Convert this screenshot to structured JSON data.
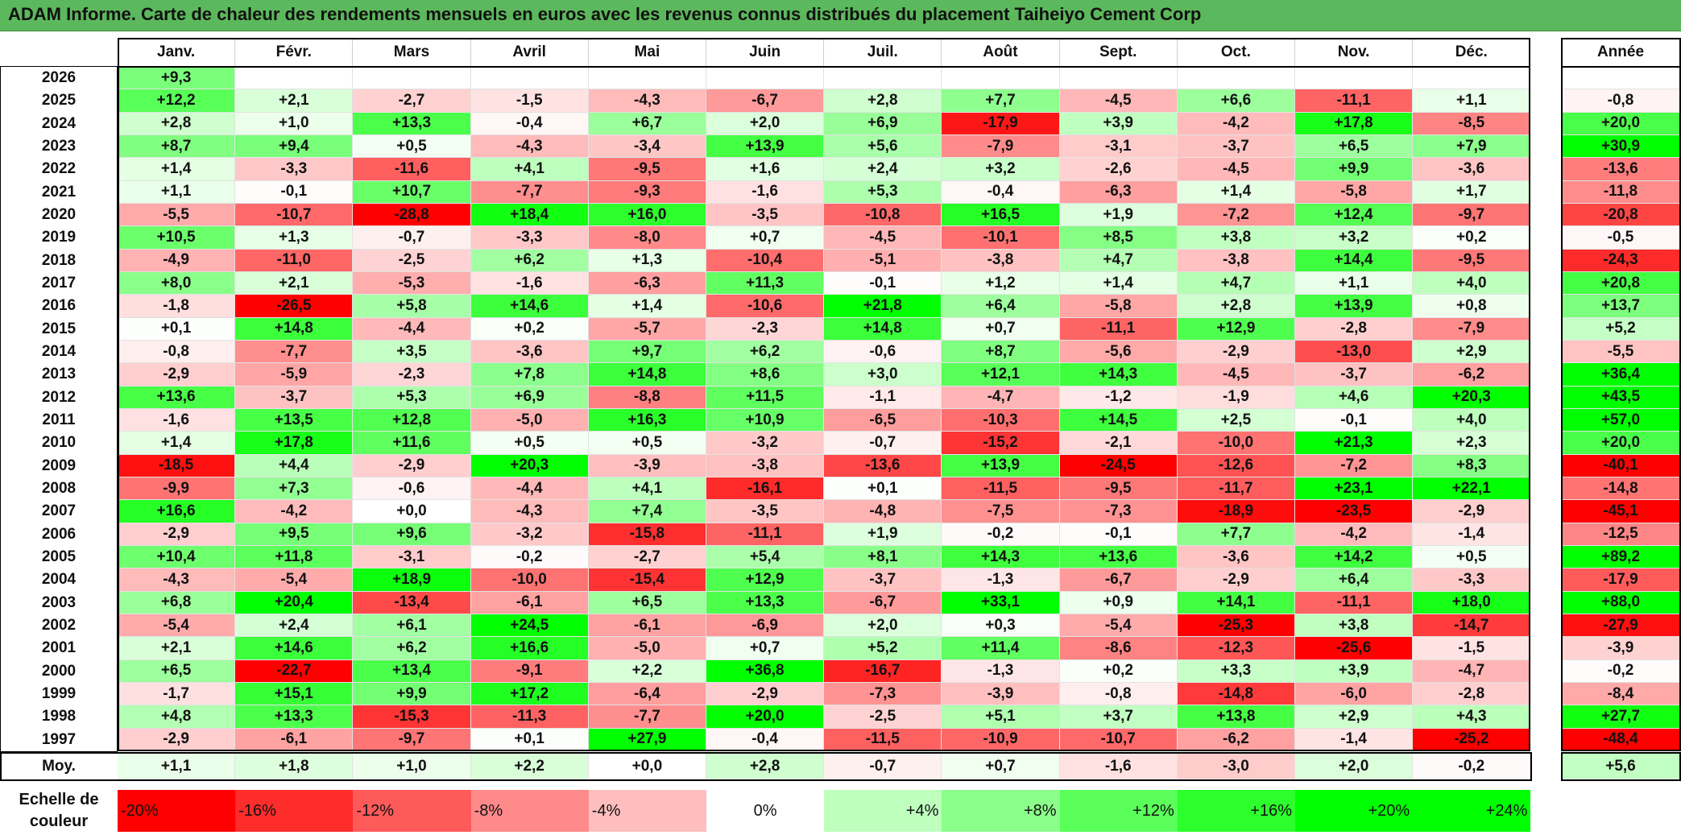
{
  "title": "ADAM Informe. Carte de chaleur des rendements mensuels en euros avec les revenus connus distribués du placement Taiheiyo Cement Corp",
  "colors": {
    "title_bg": "#5cb85c",
    "strong_red": "#ff0000",
    "strong_green": "#00ff00",
    "neutral": "#ffffff"
  },
  "chart_data": {
    "type": "heatmap",
    "title": "ADAM Informe. Carte de chaleur des rendements mensuels en euros avec les revenus connus distribués du placement Taiheiyo Cement Corp",
    "months": [
      "Janv.",
      "Févr.",
      "Mars",
      "Avril",
      "Mai",
      "Juin",
      "Juil.",
      "Août",
      "Sept.",
      "Oct.",
      "Nov.",
      "Déc."
    ],
    "year_header": "Année",
    "color_scale_range": [
      -20,
      24
    ],
    "rows": [
      {
        "year": "2026",
        "values": [
          "+9,3",
          "",
          "",
          "",
          "",
          "",
          "",
          "",
          "",
          "",
          "",
          ""
        ],
        "annual": ""
      },
      {
        "year": "2025",
        "values": [
          "+12,2",
          "+2,1",
          "-2,7",
          "-1,5",
          "-4,3",
          "-6,7",
          "+2,8",
          "+7,7",
          "-4,5",
          "+6,6",
          "-11,1",
          "+1,1"
        ],
        "annual": "-0,8"
      },
      {
        "year": "2024",
        "values": [
          "+2,8",
          "+1,0",
          "+13,3",
          "-0,4",
          "+6,7",
          "+2,0",
          "+6,9",
          "-17,9",
          "+3,9",
          "-4,2",
          "+17,8",
          "-8,5"
        ],
        "annual": "+20,0"
      },
      {
        "year": "2023",
        "values": [
          "+8,7",
          "+9,4",
          "+0,5",
          "-4,3",
          "-3,4",
          "+13,9",
          "+5,6",
          "-7,9",
          "-3,1",
          "-3,7",
          "+6,5",
          "+7,9"
        ],
        "annual": "+30,9"
      },
      {
        "year": "2022",
        "values": [
          "+1,4",
          "-3,3",
          "-11,6",
          "+4,1",
          "-9,5",
          "+1,6",
          "+2,4",
          "+3,2",
          "-2,6",
          "-4,5",
          "+9,9",
          "-3,6"
        ],
        "annual": "-13,6"
      },
      {
        "year": "2021",
        "values": [
          "+1,1",
          "-0,1",
          "+10,7",
          "-7,7",
          "-9,3",
          "-1,6",
          "+5,3",
          "-0,4",
          "-6,3",
          "+1,4",
          "-5,8",
          "+1,7"
        ],
        "annual": "-11,8"
      },
      {
        "year": "2020",
        "values": [
          "-5,5",
          "-10,7",
          "-28,8",
          "+18,4",
          "+16,0",
          "-3,5",
          "-10,8",
          "+16,5",
          "+1,9",
          "-7,2",
          "+12,4",
          "-9,7"
        ],
        "annual": "-20,8"
      },
      {
        "year": "2019",
        "values": [
          "+10,5",
          "+1,3",
          "-0,7",
          "-3,3",
          "-8,0",
          "+0,7",
          "-4,5",
          "-10,1",
          "+8,5",
          "+3,8",
          "+3,2",
          "+0,2"
        ],
        "annual": "-0,5"
      },
      {
        "year": "2018",
        "values": [
          "-4,9",
          "-11,0",
          "-2,5",
          "+6,2",
          "+1,3",
          "-10,4",
          "-5,1",
          "-3,8",
          "+4,7",
          "-3,8",
          "+14,4",
          "-9,5"
        ],
        "annual": "-24,3"
      },
      {
        "year": "2017",
        "values": [
          "+8,0",
          "+2,1",
          "-5,3",
          "-1,6",
          "-6,3",
          "+11,3",
          "-0,1",
          "+1,2",
          "+1,4",
          "+4,7",
          "+1,1",
          "+4,0"
        ],
        "annual": "+20,8"
      },
      {
        "year": "2016",
        "values": [
          "-1,8",
          "-26,5",
          "+5,8",
          "+14,6",
          "+1,4",
          "-10,6",
          "+21,8",
          "+6,4",
          "-5,8",
          "+2,8",
          "+13,9",
          "+0,8"
        ],
        "annual": "+13,7"
      },
      {
        "year": "2015",
        "values": [
          "+0,1",
          "+14,8",
          "-4,4",
          "+0,2",
          "-5,7",
          "-2,3",
          "+14,8",
          "+0,7",
          "-11,1",
          "+12,9",
          "-2,8",
          "-7,9"
        ],
        "annual": "+5,2"
      },
      {
        "year": "2014",
        "values": [
          "-0,8",
          "-7,7",
          "+3,5",
          "-3,6",
          "+9,7",
          "+6,2",
          "-0,6",
          "+8,7",
          "-5,6",
          "-2,9",
          "-13,0",
          "+2,9"
        ],
        "annual": "-5,5"
      },
      {
        "year": "2013",
        "values": [
          "-2,9",
          "-5,9",
          "-2,3",
          "+7,8",
          "+14,8",
          "+8,6",
          "+3,0",
          "+12,1",
          "+14,3",
          "-4,5",
          "-3,7",
          "-6,2"
        ],
        "annual": "+36,4"
      },
      {
        "year": "2012",
        "values": [
          "+13,6",
          "-3,7",
          "+5,3",
          "+6,9",
          "-8,8",
          "+11,5",
          "-1,1",
          "-4,7",
          "-1,2",
          "-1,9",
          "+4,6",
          "+20,3"
        ],
        "annual": "+43,5"
      },
      {
        "year": "2011",
        "values": [
          "-1,6",
          "+13,5",
          "+12,8",
          "-5,0",
          "+16,3",
          "+10,9",
          "-6,5",
          "-10,3",
          "+14,5",
          "+2,5",
          "-0,1",
          "+4,0"
        ],
        "annual": "+57,0"
      },
      {
        "year": "2010",
        "values": [
          "+1,4",
          "+17,8",
          "+11,6",
          "+0,5",
          "+0,5",
          "-3,2",
          "-0,7",
          "-15,2",
          "-2,1",
          "-10,0",
          "+21,3",
          "+2,3"
        ],
        "annual": "+20,0"
      },
      {
        "year": "2009",
        "values": [
          "-18,5",
          "+4,4",
          "-2,9",
          "+20,3",
          "-3,9",
          "-3,8",
          "-13,6",
          "+13,9",
          "-24,5",
          "-12,6",
          "-7,2",
          "+8,3"
        ],
        "annual": "-40,1"
      },
      {
        "year": "2008",
        "values": [
          "-9,9",
          "+7,3",
          "-0,6",
          "-4,4",
          "+4,1",
          "-16,1",
          "+0,1",
          "-11,5",
          "-9,5",
          "-11,7",
          "+23,1",
          "+22,1"
        ],
        "annual": "-14,8"
      },
      {
        "year": "2007",
        "values": [
          "+16,6",
          "-4,2",
          "+0,0",
          "-4,3",
          "+7,4",
          "-3,5",
          "-4,8",
          "-7,5",
          "-7,3",
          "-18,9",
          "-23,5",
          "-2,9"
        ],
        "annual": "-45,1"
      },
      {
        "year": "2006",
        "values": [
          "-2,9",
          "+9,5",
          "+9,6",
          "-3,2",
          "-15,8",
          "-11,1",
          "+1,9",
          "-0,2",
          "-0,1",
          "+7,7",
          "-4,2",
          "-1,4"
        ],
        "annual": "-12,5"
      },
      {
        "year": "2005",
        "values": [
          "+10,4",
          "+11,8",
          "-3,1",
          "-0,2",
          "-2,7",
          "+5,4",
          "+8,1",
          "+14,3",
          "+13,6",
          "-3,6",
          "+14,2",
          "+0,5"
        ],
        "annual": "+89,2"
      },
      {
        "year": "2004",
        "values": [
          "-4,3",
          "-5,4",
          "+18,9",
          "-10,0",
          "-15,4",
          "+12,9",
          "-3,7",
          "-1,3",
          "-6,7",
          "-2,9",
          "+6,4",
          "-3,3"
        ],
        "annual": "-17,9"
      },
      {
        "year": "2003",
        "values": [
          "+6,8",
          "+20,4",
          "-13,4",
          "-6,1",
          "+6,5",
          "+13,3",
          "-6,7",
          "+33,1",
          "+0,9",
          "+14,1",
          "-11,1",
          "+18,0"
        ],
        "annual": "+88,0"
      },
      {
        "year": "2002",
        "values": [
          "-5,4",
          "+2,4",
          "+6,1",
          "+24,5",
          "-6,1",
          "-6,9",
          "+2,0",
          "+0,3",
          "-5,4",
          "-25,3",
          "+3,8",
          "-14,7"
        ],
        "annual": "-27,9"
      },
      {
        "year": "2001",
        "values": [
          "+2,1",
          "+14,6",
          "+6,2",
          "+16,6",
          "-5,0",
          "+0,7",
          "+5,2",
          "+11,4",
          "-8,6",
          "-12,3",
          "-25,6",
          "-1,5"
        ],
        "annual": "-3,9"
      },
      {
        "year": "2000",
        "values": [
          "+6,5",
          "-22,7",
          "+13,4",
          "-9,1",
          "+2,2",
          "+36,8",
          "-16,7",
          "-1,3",
          "+0,2",
          "+3,3",
          "+3,9",
          "-4,7"
        ],
        "annual": "-0,2"
      },
      {
        "year": "1999",
        "values": [
          "-1,7",
          "+15,1",
          "+9,9",
          "+17,2",
          "-6,4",
          "-2,9",
          "-7,3",
          "-3,9",
          "-0,8",
          "-14,8",
          "-6,0",
          "-2,8"
        ],
        "annual": "-8,4"
      },
      {
        "year": "1998",
        "values": [
          "+4,8",
          "+13,3",
          "-15,3",
          "-11,3",
          "-7,7",
          "+20,0",
          "-2,5",
          "+5,1",
          "+3,7",
          "+13,8",
          "+2,9",
          "+4,3"
        ],
        "annual": "+27,7"
      },
      {
        "year": "1997",
        "values": [
          "-2,9",
          "-6,1",
          "-9,7",
          "+0,1",
          "+27,9",
          "-0,4",
          "-11,5",
          "-10,9",
          "-10,7",
          "-6,2",
          "-1,4",
          "-25,2"
        ],
        "annual": "-48,4"
      }
    ],
    "average": {
      "label": "Moy.",
      "values": [
        "+1,1",
        "+1,8",
        "+1,0",
        "+2,2",
        "+0,0",
        "+2,8",
        "-0,7",
        "+0,7",
        "-1,6",
        "-3,0",
        "+2,0",
        "-0,2"
      ],
      "annual": "+5,6"
    },
    "legend": {
      "label": "Echelle de couleur",
      "items": [
        "-20%",
        "-16%",
        "-12%",
        "-8%",
        "-4%",
        "0%",
        "+4%",
        "+8%",
        "+12%",
        "+16%",
        "+20%",
        "+24%"
      ],
      "values": [
        -20,
        -16,
        -12,
        -8,
        -4,
        0,
        4,
        8,
        12,
        16,
        20,
        24
      ]
    }
  }
}
